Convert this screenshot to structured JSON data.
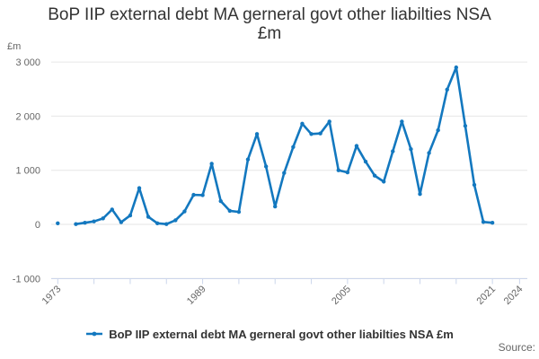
{
  "title_lines": [
    "BoP IIP external debt MA gerneral govt other liabilties NSA",
    "£m"
  ],
  "y_axis_title": "£m",
  "legend": {
    "label": "BoP IIP external debt MA gerneral govt other liabilties NSA £m",
    "position": "bottom"
  },
  "source_label": "Source:",
  "colors": {
    "series": "#1378bf",
    "grid": "#e6e6e6",
    "axis": "#ccd6eb",
    "tick_label": "#666666",
    "title": "#333333"
  },
  "chart_data": {
    "type": "line",
    "title": "BoP IIP external debt MA gerneral govt other liabilties NSA £m",
    "ylabel": "£m",
    "xlim": [
      1972,
      2025
    ],
    "ylim": [
      -1000,
      3000
    ],
    "grid": true,
    "legend_position": "bottom",
    "y_ticks": [
      -1000,
      0,
      1000,
      2000,
      3000
    ],
    "y_tick_labels": [
      "-1 000",
      "0",
      "1 000",
      "2 000",
      "3 000"
    ],
    "x_tick_years": [
      1973,
      1977,
      1981,
      1985,
      1989,
      1993,
      1997,
      2001,
      2005,
      2009,
      2013,
      2017,
      2021,
      2024
    ],
    "x_label_years": [
      1973,
      1989,
      2005,
      2021,
      2024
    ],
    "series": [
      {
        "name": "BoP IIP external debt MA gerneral govt other liabilties NSA £m",
        "points": [
          [
            1973,
            20
          ],
          [
            1974,
            null
          ],
          [
            1975,
            5
          ],
          [
            1976,
            30
          ],
          [
            1977,
            55
          ],
          [
            1978,
            110
          ],
          [
            1979,
            275
          ],
          [
            1980,
            40
          ],
          [
            1981,
            165
          ],
          [
            1982,
            670
          ],
          [
            1983,
            140
          ],
          [
            1984,
            20
          ],
          [
            1985,
            5
          ],
          [
            1986,
            75
          ],
          [
            1987,
            240
          ],
          [
            1988,
            545
          ],
          [
            1989,
            540
          ],
          [
            1990,
            1120
          ],
          [
            1991,
            430
          ],
          [
            1992,
            250
          ],
          [
            1993,
            230
          ],
          [
            1994,
            1200
          ],
          [
            1995,
            1670
          ],
          [
            1996,
            1070
          ],
          [
            1997,
            330
          ],
          [
            1998,
            950
          ],
          [
            1999,
            1430
          ],
          [
            2000,
            1860
          ],
          [
            2001,
            1670
          ],
          [
            2002,
            1680
          ],
          [
            2003,
            1900
          ],
          [
            2004,
            1000
          ],
          [
            2005,
            960
          ],
          [
            2006,
            1450
          ],
          [
            2007,
            1160
          ],
          [
            2008,
            900
          ],
          [
            2009,
            790
          ],
          [
            2010,
            1350
          ],
          [
            2011,
            1900
          ],
          [
            2012,
            1390
          ],
          [
            2013,
            560
          ],
          [
            2014,
            1320
          ],
          [
            2015,
            1740
          ],
          [
            2016,
            2490
          ],
          [
            2017,
            2900
          ],
          [
            2018,
            1820
          ],
          [
            2019,
            730
          ],
          [
            2020,
            45
          ],
          [
            2021,
            30
          ]
        ]
      }
    ]
  }
}
